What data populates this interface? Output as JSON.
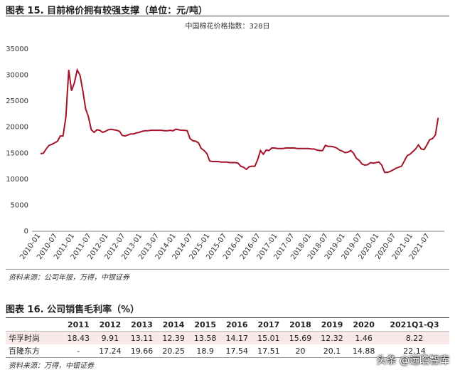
{
  "figure_title": "图表 15. 目前棉价拥有较强支撑（单位：元/吨）",
  "chart_data": {
    "type": "line",
    "title": "中国棉花价格指数：328日",
    "x": [
      "2010-01",
      "2010-02",
      "2010-03",
      "2010-04",
      "2010-05",
      "2010-06",
      "2010-07",
      "2010-08",
      "2010-09",
      "2010-10",
      "2010-11",
      "2010-12",
      "2011-01",
      "2011-02",
      "2011-03",
      "2011-04",
      "2011-05",
      "2011-06",
      "2011-07",
      "2011-08",
      "2011-09",
      "2011-10",
      "2011-11",
      "2011-12",
      "2012-01",
      "2012-02",
      "2012-03",
      "2012-04",
      "2012-05",
      "2012-06",
      "2012-07",
      "2012-08",
      "2012-09",
      "2012-10",
      "2012-11",
      "2012-12",
      "2013-01",
      "2013-02",
      "2013-03",
      "2013-04",
      "2013-05",
      "2013-06",
      "2013-07",
      "2013-08",
      "2013-09",
      "2013-10",
      "2013-11",
      "2013-12",
      "2014-01",
      "2014-02",
      "2014-03",
      "2014-04",
      "2014-05",
      "2014-06",
      "2014-07",
      "2014-08",
      "2014-09",
      "2014-10",
      "2014-11",
      "2014-12",
      "2015-01",
      "2015-02",
      "2015-03",
      "2015-04",
      "2015-05",
      "2015-06",
      "2015-07",
      "2015-08",
      "2015-09",
      "2015-10",
      "2015-11",
      "2015-12",
      "2016-01",
      "2016-02",
      "2016-03",
      "2016-04",
      "2016-05",
      "2016-06",
      "2016-07",
      "2016-08",
      "2016-09",
      "2016-10",
      "2016-11",
      "2016-12",
      "2017-01",
      "2017-02",
      "2017-03",
      "2017-04",
      "2017-05",
      "2017-06",
      "2017-07",
      "2017-08",
      "2017-09",
      "2017-10",
      "2017-11",
      "2017-12",
      "2018-01",
      "2018-02",
      "2018-03",
      "2018-04",
      "2018-05",
      "2018-06",
      "2018-07",
      "2018-08",
      "2018-09",
      "2018-10",
      "2018-11",
      "2018-12",
      "2019-01",
      "2019-02",
      "2019-03",
      "2019-04",
      "2019-05",
      "2019-06",
      "2019-07",
      "2019-08",
      "2019-09",
      "2019-10",
      "2019-11",
      "2019-12",
      "2020-01",
      "2020-02",
      "2020-03",
      "2020-04",
      "2020-05",
      "2020-06",
      "2020-07",
      "2020-08",
      "2020-09",
      "2020-10",
      "2020-11",
      "2020-12",
      "2021-01",
      "2021-02",
      "2021-03",
      "2021-04",
      "2021-05",
      "2021-06",
      "2021-07",
      "2021-08",
      "2021-09",
      "2021-10"
    ],
    "series": [
      {
        "color": "#a5122a",
        "values": [
          14900,
          15000,
          15800,
          16500,
          16700,
          17000,
          17300,
          18300,
          18300,
          22000,
          31000,
          27000,
          28500,
          31000,
          30000,
          27000,
          23500,
          22000,
          19500,
          19000,
          19500,
          19400,
          19000,
          19200,
          19500,
          19600,
          19500,
          19400,
          19200,
          18400,
          18300,
          18500,
          18700,
          18700,
          18900,
          19000,
          19200,
          19300,
          19300,
          19400,
          19400,
          19400,
          19400,
          19400,
          19300,
          19300,
          19400,
          19300,
          19600,
          19500,
          19400,
          19400,
          19300,
          17800,
          17400,
          17300,
          17000,
          15900,
          15500,
          14900,
          13500,
          13400,
          13400,
          13400,
          13300,
          13300,
          13300,
          13200,
          13200,
          13200,
          13100,
          12500,
          12300,
          11900,
          12400,
          12500,
          12500,
          13800,
          15500,
          14800,
          15600,
          15500,
          16000,
          16000,
          15900,
          15900,
          15900,
          16000,
          16000,
          16000,
          16000,
          15900,
          15900,
          15900,
          15900,
          15900,
          15800,
          15800,
          15600,
          15500,
          15500,
          16500,
          16300,
          16300,
          16200,
          16000,
          15600,
          15400,
          15100,
          15200,
          15500,
          15000,
          14000,
          13600,
          12900,
          12700,
          12800,
          13200,
          13100,
          13200,
          13300,
          12700,
          11300,
          11300,
          11500,
          11800,
          12100,
          12300,
          12500,
          13500,
          14500,
          14800,
          15300,
          15800,
          16600,
          15800,
          15700,
          16600,
          17600,
          17800,
          18500,
          21800
        ]
      }
    ],
    "ylim": [
      0,
      35000
    ],
    "yticks": [
      0,
      5000,
      10000,
      15000,
      20000,
      25000,
      30000,
      35000
    ],
    "grid": false
  },
  "source1": "资料来源：公司年报，万得，中银证券",
  "table_title": "图表 16. 公司销售毛利率（%）",
  "table": {
    "header": [
      "2011",
      "2012",
      "2013",
      "2014",
      "2015",
      "2016",
      "2017",
      "2018",
      "2019",
      "2020",
      "2021Q1-Q3"
    ],
    "rows": [
      [
        "华孚时尚",
        18.43,
        9.91,
        13.11,
        12.39,
        13.58,
        14.17,
        15.01,
        15.69,
        12.32,
        1.46,
        8.22
      ],
      [
        "百隆东方",
        "-",
        17.24,
        19.66,
        20.25,
        18.9,
        17.54,
        17.51,
        20,
        20.1,
        14.88,
        22.14
      ]
    ]
  },
  "source2": "资料来源：万得，中银证券",
  "watermark": "头条 @远瞻智库"
}
